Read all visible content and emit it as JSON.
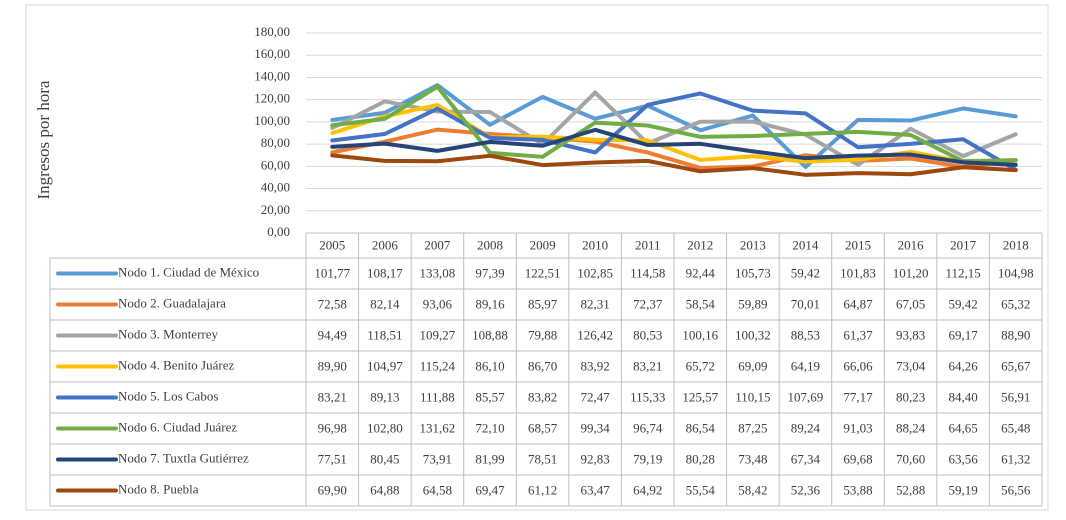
{
  "chart_data": {
    "type": "line",
    "y_label": "Ingresos por hora",
    "categories": [
      "2005",
      "2006",
      "2007",
      "2008",
      "2009",
      "2010",
      "2011",
      "2012",
      "2013",
      "2014",
      "2015",
      "2016",
      "2017",
      "2018"
    ],
    "ylim": [
      0,
      180
    ],
    "yticks": [
      {
        "value": 0,
        "label": "0,00"
      },
      {
        "value": 20,
        "label": "20,00"
      },
      {
        "value": 40,
        "label": "40,00"
      },
      {
        "value": 60,
        "label": "60,00"
      },
      {
        "value": 80,
        "label": "80,00"
      },
      {
        "value": 100,
        "label": "100,00"
      },
      {
        "value": 120,
        "label": "120,00"
      },
      {
        "value": 140,
        "label": "140,00"
      },
      {
        "value": 160,
        "label": "160,00"
      },
      {
        "value": 180,
        "label": "180,00"
      }
    ],
    "grid": true,
    "series": [
      {
        "name": "Nodo 1. Ciudad de México",
        "color": "#5b9bd5",
        "values": [
          101.77,
          108.17,
          133.08,
          97.39,
          122.51,
          102.85,
          114.58,
          92.44,
          105.73,
          59.42,
          101.83,
          101.2,
          112.15,
          104.98
        ],
        "value_labels": [
          "101,77",
          "108,17",
          "133,08",
          "97,39",
          "122,51",
          "102,85",
          "114,58",
          "92,44",
          "105,73",
          "59,42",
          "101,83",
          "101,20",
          "112,15",
          "104,98"
        ]
      },
      {
        "name": "Nodo 2. Guadalajara",
        "color": "#ed7d31",
        "values": [
          72.58,
          82.14,
          93.06,
          89.16,
          85.97,
          82.31,
          72.37,
          58.54,
          59.89,
          70.01,
          64.87,
          67.05,
          59.42,
          65.32
        ],
        "value_labels": [
          "72,58",
          "82,14",
          "93,06",
          "89,16",
          "85,97",
          "82,31",
          "72,37",
          "58,54",
          "59,89",
          "70,01",
          "64,87",
          "67,05",
          "59,42",
          "65,32"
        ]
      },
      {
        "name": "Nodo 3. Monterrey",
        "color": "#a5a5a5",
        "values": [
          94.49,
          118.51,
          109.27,
          108.88,
          79.88,
          126.42,
          80.53,
          100.16,
          100.32,
          88.53,
          61.37,
          93.83,
          69.17,
          88.9
        ],
        "value_labels": [
          "94,49",
          "118,51",
          "109,27",
          "108,88",
          "79,88",
          "126,42",
          "80,53",
          "100,16",
          "100,32",
          "88,53",
          "61,37",
          "93,83",
          "69,17",
          "88,90"
        ]
      },
      {
        "name": "Nodo 4. Benito Juárez",
        "color": "#ffc000",
        "values": [
          89.9,
          104.97,
          115.24,
          86.1,
          86.7,
          83.92,
          83.21,
          65.72,
          69.09,
          64.19,
          66.06,
          73.04,
          64.26,
          65.67
        ],
        "value_labels": [
          "89,90",
          "104,97",
          "115,24",
          "86,10",
          "86,70",
          "83,92",
          "83,21",
          "65,72",
          "69,09",
          "64,19",
          "66,06",
          "73,04",
          "64,26",
          "65,67"
        ]
      },
      {
        "name": "Nodo 5. Los Cabos",
        "color": "#4472c4",
        "values": [
          83.21,
          89.13,
          111.88,
          85.57,
          83.82,
          72.47,
          115.33,
          125.57,
          110.15,
          107.69,
          77.17,
          80.23,
          84.4,
          56.91
        ],
        "value_labels": [
          "83,21",
          "89,13",
          "111,88",
          "85,57",
          "83,82",
          "72,47",
          "115,33",
          "125,57",
          "110,15",
          "107,69",
          "77,17",
          "80,23",
          "84,40",
          "56,91"
        ]
      },
      {
        "name": "Nodo 6. Ciudad Juárez",
        "color": "#70ad47",
        "values": [
          96.98,
          102.8,
          131.62,
          72.1,
          68.57,
          99.34,
          96.74,
          86.54,
          87.25,
          89.24,
          91.03,
          88.24,
          64.65,
          65.48
        ],
        "value_labels": [
          "96,98",
          "102,80",
          "131,62",
          "72,10",
          "68,57",
          "99,34",
          "96,74",
          "86,54",
          "87,25",
          "89,24",
          "91,03",
          "88,24",
          "64,65",
          "65,48"
        ]
      },
      {
        "name": "Nodo 7. Tuxtla Gutiérrez",
        "color": "#264478",
        "values": [
          77.51,
          80.45,
          73.91,
          81.99,
          78.51,
          92.83,
          79.19,
          80.28,
          73.48,
          67.34,
          69.68,
          70.6,
          63.56,
          61.32
        ],
        "value_labels": [
          "77,51",
          "80,45",
          "73,91",
          "81,99",
          "78,51",
          "92,83",
          "79,19",
          "80,28",
          "73,48",
          "67,34",
          "69,68",
          "70,60",
          "63,56",
          "61,32"
        ]
      },
      {
        "name": "Nodo 8. Puebla",
        "color": "#9e480e",
        "values": [
          69.9,
          64.88,
          64.58,
          69.47,
          61.12,
          63.47,
          64.92,
          55.54,
          58.42,
          52.36,
          53.88,
          52.88,
          59.19,
          56.56
        ],
        "value_labels": [
          "69,90",
          "64,88",
          "64,58",
          "69,47",
          "61,12",
          "63,47",
          "64,92",
          "55,54",
          "58,42",
          "52,36",
          "53,88",
          "52,88",
          "59,19",
          "56,56"
        ]
      }
    ]
  }
}
